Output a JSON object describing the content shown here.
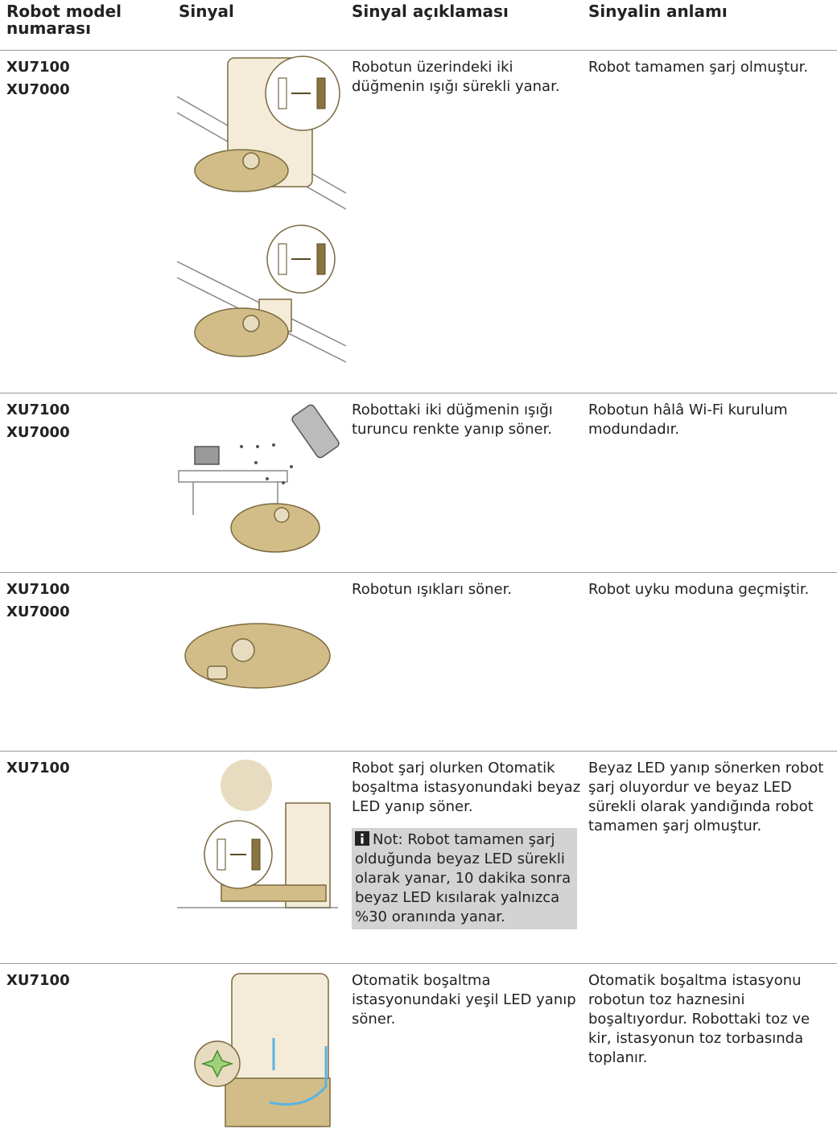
{
  "table": {
    "header": [
      "Robot model numarası",
      "Sinyal",
      "Sinyal açıklaması",
      "Sinyalin anlamı"
    ],
    "rows": [
      {
        "models": [
          "XU7100",
          "XU7000"
        ],
        "description": "Robotun üzerindeki iki düğmenin ışığı sürekli yanar.",
        "meaning": "Robot tamamen şarj olmuştur."
      },
      {
        "models": [
          "XU7100",
          "XU7000"
        ],
        "description": "Robottaki iki düğmenin ışığı turuncu renkte yanıp söner.",
        "meaning": "Robotun hâlâ Wi-Fi kurulum modundadır."
      },
      {
        "models": [
          "XU7100",
          "XU7000"
        ],
        "description": "Robotun ışıkları söner.",
        "meaning": "Robot uyku moduna geçmiştir."
      },
      {
        "models": [
          "XU7100"
        ],
        "description": "Robot şarj olurken Otomatik boşaltma istasyonundaki beyaz LED yanıp söner.",
        "note": "Not: Robot tamamen şarj olduğunda beyaz LED sürekli olarak yanar, 10 dakika sonra beyaz LED kısılarak yalnızca %30 oranında yanar.",
        "meaning": "Beyaz LED yanıp sönerken robot şarj oluyordur ve beyaz LED sürekli olarak yandığında robot tamamen şarj olmuştur."
      },
      {
        "models": [
          "XU7100"
        ],
        "description": "Otomatik boşaltma istasyonundaki yeşil LED yanıp söner.",
        "meaning": "Otomatik boşaltma istasyonu robotun toz haznesini boşaltıyordur. Robottaki toz ve kir, istasyonun toz torbasında toplanır."
      }
    ]
  }
}
